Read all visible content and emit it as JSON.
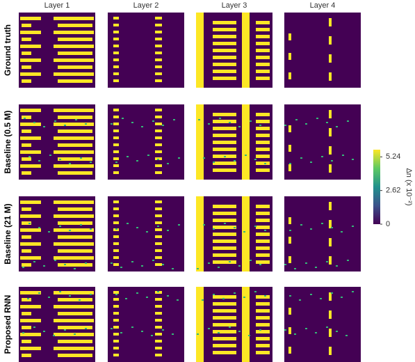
{
  "columns": [
    "Layer 1",
    "Layer 2",
    "Layer 3",
    "Layer 4"
  ],
  "rows": [
    "Ground truth",
    "Baseline (0.5 M)",
    "Baseline (21 M)",
    "Proposed RNN"
  ],
  "colorbar": {
    "label": "Δn (x 10⁻²)",
    "lim": [
      0,
      5.8
    ],
    "ticks": [
      0,
      2.62,
      5.24
    ]
  }
}
